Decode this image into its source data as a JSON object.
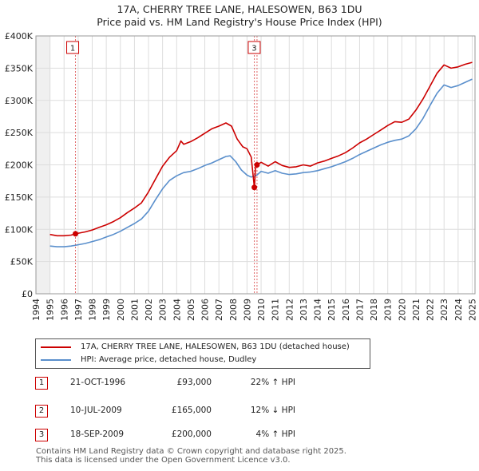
{
  "chart_data": {
    "type": "line",
    "title": "17A, CHERRY TREE LANE, HALESOWEN, B63 1DU",
    "subtitle": "Price paid vs. HM Land Registry's House Price Index (HPI)",
    "xlim": [
      1994,
      2025.2
    ],
    "ylim": [
      0,
      400000
    ],
    "x_ticks": [
      "1994",
      "1995",
      "1996",
      "1997",
      "1998",
      "1999",
      "2000",
      "2001",
      "2002",
      "2003",
      "2004",
      "2005",
      "2006",
      "2007",
      "2008",
      "2009",
      "2010",
      "2011",
      "2012",
      "2013",
      "2014",
      "2015",
      "2016",
      "2017",
      "2018",
      "2019",
      "2020",
      "2021",
      "2022",
      "2023",
      "2024",
      "2025"
    ],
    "y_ticks": [
      "£0",
      "£50K",
      "£100K",
      "£150K",
      "£200K",
      "£250K",
      "£300K",
      "£350K",
      "£400K"
    ],
    "hpi_start": 1995,
    "series": [
      {
        "name": "17A, CHERRY TREE LANE, HALESOWEN, B63 1DU (detached house)",
        "color": "#cc0000",
        "x": [
          1995.0,
          1995.5,
          1996.0,
          1996.5,
          1996.81,
          1997.5,
          1998.0,
          1998.5,
          1999.0,
          1999.5,
          2000.0,
          2000.5,
          2001.0,
          2001.5,
          2002.0,
          2002.5,
          2003.0,
          2003.5,
          2004.0,
          2004.3,
          2004.5,
          2005.0,
          2005.5,
          2006.0,
          2006.5,
          2007.0,
          2007.5,
          2007.9,
          2008.3,
          2008.7,
          2009.0,
          2009.3,
          2009.52,
          2009.53,
          2009.6,
          2009.71,
          2010.0,
          2010.5,
          2011.0,
          2011.5,
          2012.0,
          2012.5,
          2013.0,
          2013.5,
          2014.0,
          2014.5,
          2015.0,
          2015.5,
          2016.0,
          2016.5,
          2017.0,
          2017.5,
          2018.0,
          2018.5,
          2019.0,
          2019.5,
          2020.0,
          2020.5,
          2021.0,
          2021.5,
          2022.0,
          2022.5,
          2023.0,
          2023.5,
          2024.0,
          2024.5,
          2025.0
        ],
        "y": [
          92000,
          90000,
          90000,
          91000,
          93000,
          96000,
          99000,
          103000,
          107000,
          112000,
          118000,
          126000,
          133000,
          141000,
          158000,
          178000,
          198000,
          212000,
          222000,
          237000,
          232000,
          236000,
          242000,
          249000,
          256000,
          260000,
          265000,
          260000,
          240000,
          228000,
          225000,
          212000,
          165000,
          165000,
          195000,
          200000,
          204000,
          198000,
          205000,
          199000,
          196000,
          197000,
          200000,
          198000,
          203000,
          206000,
          210000,
          214000,
          219000,
          226000,
          234000,
          240000,
          247000,
          254000,
          261000,
          267000,
          266000,
          271000,
          285000,
          302000,
          322000,
          342000,
          355000,
          350000,
          352000,
          356000,
          359000
        ]
      },
      {
        "name": "HPI: Average price, detached house, Dudley",
        "color": "#5a8fcc",
        "x": [
          1995.0,
          1995.5,
          1996.0,
          1996.5,
          1997.0,
          1997.5,
          1998.0,
          1998.5,
          1999.0,
          1999.5,
          2000.0,
          2000.5,
          2001.0,
          2001.5,
          2002.0,
          2002.5,
          2003.0,
          2003.5,
          2004.0,
          2004.5,
          2005.0,
          2005.5,
          2006.0,
          2006.5,
          2007.0,
          2007.5,
          2007.8,
          2008.2,
          2008.6,
          2009.0,
          2009.3,
          2009.7,
          2010.0,
          2010.5,
          2011.0,
          2011.5,
          2012.0,
          2012.5,
          2013.0,
          2013.5,
          2014.0,
          2014.5,
          2015.0,
          2015.5,
          2016.0,
          2016.5,
          2017.0,
          2017.5,
          2018.0,
          2018.5,
          2019.0,
          2019.5,
          2020.0,
          2020.5,
          2021.0,
          2021.5,
          2022.0,
          2022.5,
          2023.0,
          2023.5,
          2024.0,
          2024.5,
          2025.0
        ],
        "y": [
          74000,
          73000,
          73000,
          74000,
          76000,
          78000,
          81000,
          84000,
          88000,
          92000,
          97000,
          103000,
          109000,
          116000,
          128000,
          146000,
          163000,
          176000,
          183000,
          188000,
          190000,
          194000,
          199000,
          203000,
          208000,
          213000,
          214000,
          205000,
          192000,
          184000,
          181000,
          184000,
          190000,
          187000,
          191000,
          187000,
          185000,
          186000,
          188000,
          189000,
          191000,
          194000,
          197000,
          201000,
          205000,
          210000,
          216000,
          221000,
          226000,
          231000,
          235000,
          238000,
          240000,
          245000,
          256000,
          272000,
          292000,
          311000,
          324000,
          320000,
          323000,
          328000,
          333000
        ]
      }
    ],
    "sales": [
      {
        "label": "1",
        "x": 1996.81,
        "y": 93000,
        "date": "21-OCT-1996",
        "price": "£93,000",
        "hpi": "22% ↑ HPI"
      },
      {
        "label": "2",
        "x": 2009.52,
        "y": 165000,
        "date": "10-JUL-2009",
        "price": "£165,000",
        "hpi": "12% ↓ HPI"
      },
      {
        "label": "3",
        "x": 2009.71,
        "y": 200000,
        "date": "18-SEP-2009",
        "price": "£200,000",
        "hpi": "4% ↑ HPI"
      }
    ],
    "chart_markers": [
      "1",
      "3"
    ],
    "legend_position": "bottom-left"
  },
  "footer": {
    "line1": "Contains HM Land Registry data © Crown copyright and database right 2025.",
    "line2": "This data is licensed under the Open Government Licence v3.0."
  }
}
